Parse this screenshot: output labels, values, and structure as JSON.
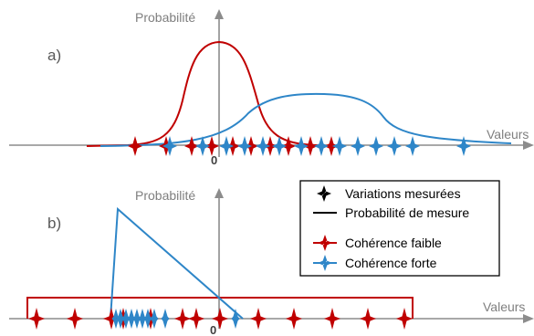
{
  "figure": {
    "panel_a": {
      "label": "a)",
      "y_axis_label": "Probabilité",
      "x_axis_label": "Valeurs",
      "origin": "0"
    },
    "panel_b": {
      "label": "b)",
      "y_axis_label": "Probabilité",
      "x_axis_label": "Valeurs",
      "origin": "0"
    },
    "legend": {
      "measured": "Variations mesurées",
      "probability": "Probabilité de mesure",
      "weak": "Cohérence faible",
      "strong": "Cohérence forte"
    },
    "colors": {
      "weak": "#c00000",
      "strong": "#2e86c8",
      "axis": "#7f7f7f",
      "marker_black": "#000000"
    }
  }
}
